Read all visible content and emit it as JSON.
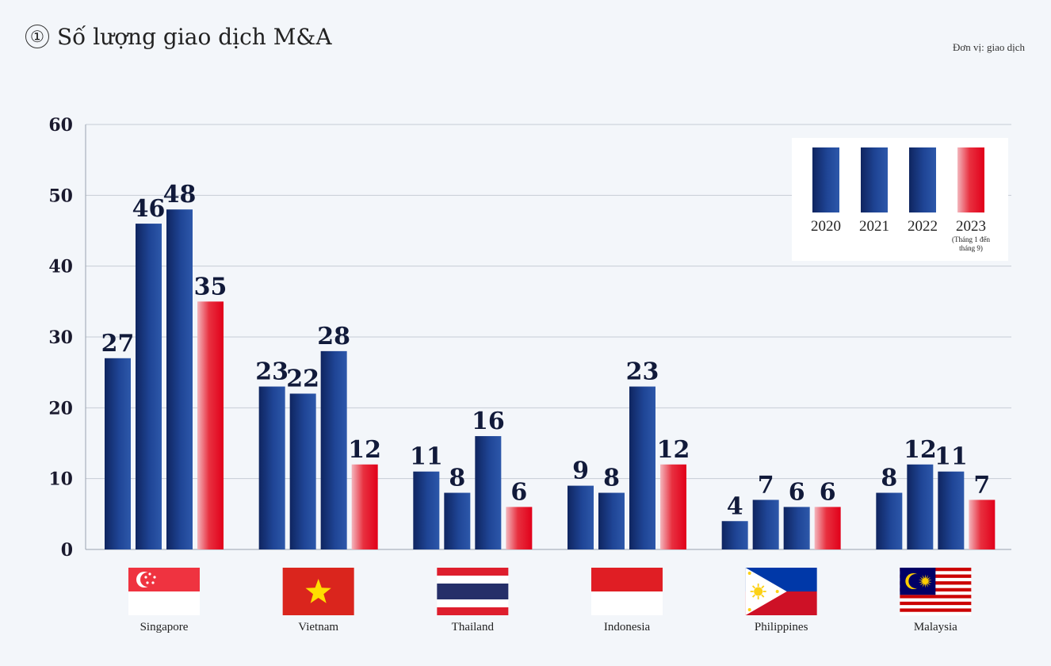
{
  "header": {
    "title_marker": "①",
    "title": "Số lượng giao dịch M&A",
    "unit": "Đơn vị: giao dịch"
  },
  "colors": {
    "navy_dark": "#122a66",
    "navy_light": "#2c56a8",
    "red": "#e30016",
    "red_light": "#f2b4bc",
    "grid": "#c6ccd6"
  },
  "chart_data": {
    "type": "bar",
    "title": "Số lượng giao dịch M&A",
    "ylim": [
      0,
      60
    ],
    "yticks": [
      0,
      10,
      20,
      30,
      40,
      50,
      60
    ],
    "grid": true,
    "legend_position": "top-right",
    "categories": [
      "Singapore",
      "Vietnam",
      "Thailand",
      "Indonesia",
      "Philippines",
      "Malaysia"
    ],
    "flags": [
      "singapore-flag-icon",
      "vietnam-flag-icon",
      "thailand-flag-icon",
      "indonesia-flag-icon",
      "philippines-flag-icon",
      "malaysia-flag-icon"
    ],
    "series": [
      {
        "name": "2020",
        "note": "",
        "values": [
          27,
          23,
          11,
          9,
          4,
          8
        ]
      },
      {
        "name": "2021",
        "note": "",
        "values": [
          46,
          22,
          8,
          8,
          7,
          12
        ]
      },
      {
        "name": "2022",
        "note": "",
        "values": [
          48,
          28,
          16,
          23,
          6,
          11
        ]
      },
      {
        "name": "2023",
        "note": "(Tháng 1 đến tháng 9)",
        "values": [
          35,
          12,
          6,
          12,
          6,
          7
        ]
      }
    ]
  }
}
